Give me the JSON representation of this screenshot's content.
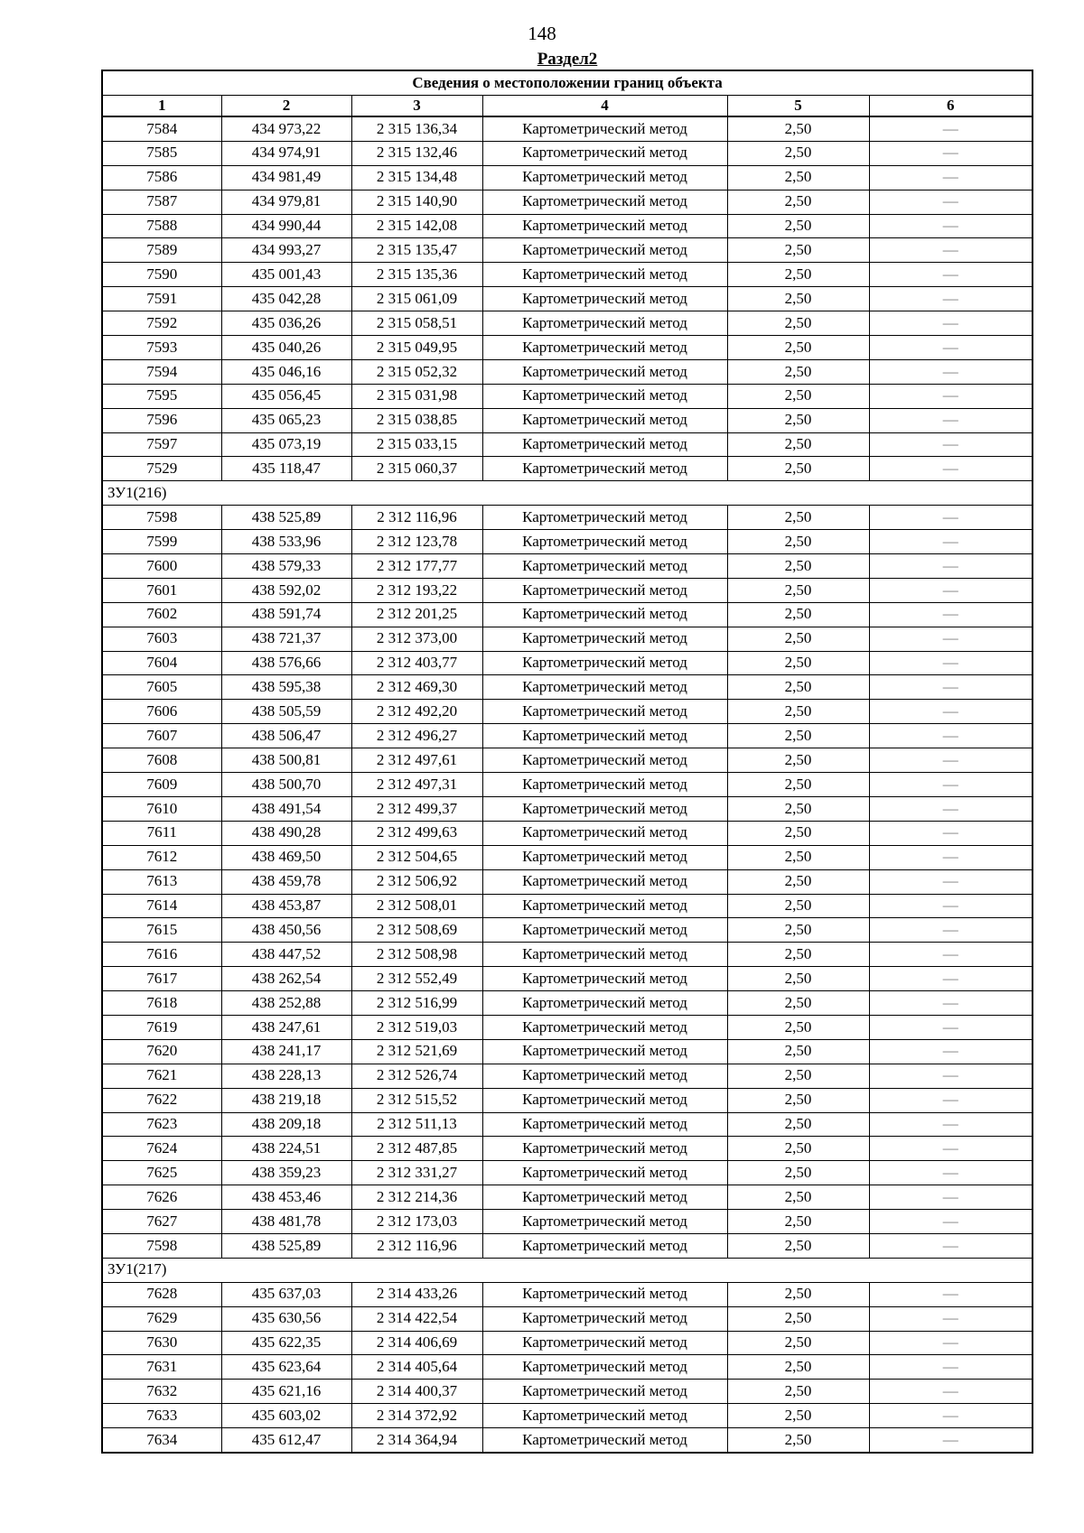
{
  "page": {
    "number": "148",
    "section_heading": "Раздел2"
  },
  "table": {
    "title": "Сведения о местоположении границ объекта",
    "column_headers": [
      "1",
      "2",
      "3",
      "4",
      "5",
      "6"
    ],
    "method_label": "Картометрический метод",
    "precision_value": "2,50",
    "empty_marker": "—",
    "rows": [
      {
        "point": "7584",
        "x": "434 973,22",
        "y": "2 315 136,34"
      },
      {
        "point": "7585",
        "x": "434 974,91",
        "y": "2 315 132,46"
      },
      {
        "point": "7586",
        "x": "434 981,49",
        "y": "2 315 134,48"
      },
      {
        "point": "7587",
        "x": "434 979,81",
        "y": "2 315 140,90"
      },
      {
        "point": "7588",
        "x": "434 990,44",
        "y": "2 315 142,08"
      },
      {
        "point": "7589",
        "x": "434 993,27",
        "y": "2 315 135,47"
      },
      {
        "point": "7590",
        "x": "435 001,43",
        "y": "2 315 135,36"
      },
      {
        "point": "7591",
        "x": "435 042,28",
        "y": "2 315 061,09"
      },
      {
        "point": "7592",
        "x": "435 036,26",
        "y": "2 315 058,51"
      },
      {
        "point": "7593",
        "x": "435 040,26",
        "y": "2 315 049,95"
      },
      {
        "point": "7594",
        "x": "435 046,16",
        "y": "2 315 052,32"
      },
      {
        "point": "7595",
        "x": "435 056,45",
        "y": "2 315 031,98"
      },
      {
        "point": "7596",
        "x": "435 065,23",
        "y": "2 315 038,85"
      },
      {
        "point": "7597",
        "x": "435 073,19",
        "y": "2 315 033,15"
      },
      {
        "point": "7529",
        "x": "435 118,47",
        "y": "2 315 060,37"
      },
      {
        "section": "ЗУ1(216)"
      },
      {
        "point": "7598",
        "x": "438 525,89",
        "y": "2 312 116,96"
      },
      {
        "point": "7599",
        "x": "438 533,96",
        "y": "2 312 123,78"
      },
      {
        "point": "7600",
        "x": "438 579,33",
        "y": "2 312 177,77"
      },
      {
        "point": "7601",
        "x": "438 592,02",
        "y": "2 312 193,22"
      },
      {
        "point": "7602",
        "x": "438 591,74",
        "y": "2 312 201,25"
      },
      {
        "point": "7603",
        "x": "438 721,37",
        "y": "2 312 373,00"
      },
      {
        "point": "7604",
        "x": "438 576,66",
        "y": "2 312 403,77"
      },
      {
        "point": "7605",
        "x": "438 595,38",
        "y": "2 312 469,30"
      },
      {
        "point": "7606",
        "x": "438 505,59",
        "y": "2 312 492,20"
      },
      {
        "point": "7607",
        "x": "438 506,47",
        "y": "2 312 496,27"
      },
      {
        "point": "7608",
        "x": "438 500,81",
        "y": "2 312 497,61"
      },
      {
        "point": "7609",
        "x": "438 500,70",
        "y": "2 312 497,31"
      },
      {
        "point": "7610",
        "x": "438 491,54",
        "y": "2 312 499,37"
      },
      {
        "point": "7611",
        "x": "438 490,28",
        "y": "2 312 499,63"
      },
      {
        "point": "7612",
        "x": "438 469,50",
        "y": "2 312 504,65"
      },
      {
        "point": "7613",
        "x": "438 459,78",
        "y": "2 312 506,92"
      },
      {
        "point": "7614",
        "x": "438 453,87",
        "y": "2 312 508,01"
      },
      {
        "point": "7615",
        "x": "438 450,56",
        "y": "2 312 508,69"
      },
      {
        "point": "7616",
        "x": "438 447,52",
        "y": "2 312 508,98"
      },
      {
        "point": "7617",
        "x": "438 262,54",
        "y": "2 312 552,49"
      },
      {
        "point": "7618",
        "x": "438 252,88",
        "y": "2 312 516,99"
      },
      {
        "point": "7619",
        "x": "438 247,61",
        "y": "2 312 519,03"
      },
      {
        "point": "7620",
        "x": "438 241,17",
        "y": "2 312 521,69"
      },
      {
        "point": "7621",
        "x": "438 228,13",
        "y": "2 312 526,74"
      },
      {
        "point": "7622",
        "x": "438 219,18",
        "y": "2 312 515,52"
      },
      {
        "point": "7623",
        "x": "438 209,18",
        "y": "2 312 511,13"
      },
      {
        "point": "7624",
        "x": "438 224,51",
        "y": "2 312 487,85"
      },
      {
        "point": "7625",
        "x": "438 359,23",
        "y": "2 312 331,27"
      },
      {
        "point": "7626",
        "x": "438 453,46",
        "y": "2 312 214,36"
      },
      {
        "point": "7627",
        "x": "438 481,78",
        "y": "2 312 173,03"
      },
      {
        "point": "7598",
        "x": "438 525,89",
        "y": "2 312 116,96"
      },
      {
        "section": "ЗУ1(217)"
      },
      {
        "point": "7628",
        "x": "435 637,03",
        "y": "2 314 433,26"
      },
      {
        "point": "7629",
        "x": "435 630,56",
        "y": "2 314 422,54"
      },
      {
        "point": "7630",
        "x": "435 622,35",
        "y": "2 314 406,69"
      },
      {
        "point": "7631",
        "x": "435 623,64",
        "y": "2 314 405,64"
      },
      {
        "point": "7632",
        "x": "435 621,16",
        "y": "2 314 400,37"
      },
      {
        "point": "7633",
        "x": "435 603,02",
        "y": "2 314 372,92"
      },
      {
        "point": "7634",
        "x": "435 612,47",
        "y": "2 314 364,94"
      }
    ]
  }
}
